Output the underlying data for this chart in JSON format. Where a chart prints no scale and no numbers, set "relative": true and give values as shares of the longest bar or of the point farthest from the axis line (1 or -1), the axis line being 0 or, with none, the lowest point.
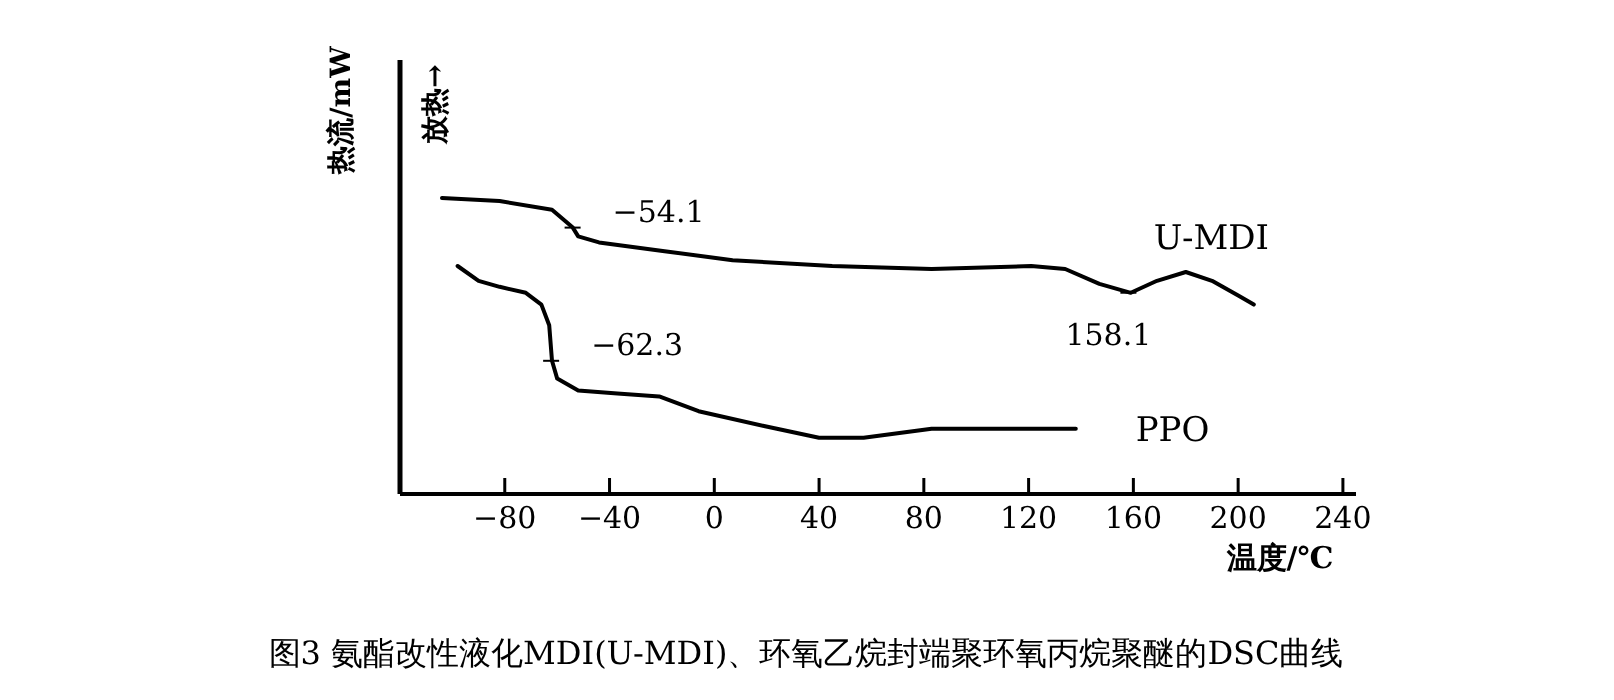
{
  "chart_data": {
    "type": "line",
    "relative": true,
    "title": "图3 氨酯改性液化MDI(U-MDI)、环氧乙烷封端聚环氧丙烷聚醚的DSC曲线",
    "xlabel": "温度/℃",
    "ylabel": "热流/mW",
    "xlim": [
      -120,
      245
    ],
    "xticks": [
      -80,
      -40,
      0,
      40,
      80,
      120,
      160,
      200,
      240
    ],
    "series": [
      {
        "name": "U-MDI",
        "color": "#000000",
        "x": [
          -104,
          -82,
          -62,
          -54,
          -52,
          -44,
          -19,
          7,
          45,
          83,
          121,
          134,
          147,
          159,
          169,
          180,
          190,
          200,
          206
        ],
        "values": [
          1.0,
          0.99,
          0.96,
          0.9,
          0.87,
          0.85,
          0.82,
          0.79,
          0.77,
          0.76,
          0.77,
          0.76,
          0.71,
          0.68,
          0.72,
          0.75,
          0.72,
          0.67,
          0.64
        ]
      },
      {
        "name": "PPO",
        "color": "#000000",
        "x": [
          -98,
          -90,
          -82,
          -72,
          -66,
          -63,
          -62,
          -60,
          -52,
          -37,
          -21,
          -6,
          19,
          40,
          57,
          83,
          108,
          138
        ],
        "values": [
          0.77,
          0.72,
          0.7,
          0.68,
          0.64,
          0.57,
          0.45,
          0.39,
          0.35,
          0.34,
          0.33,
          0.28,
          0.23,
          0.19,
          0.19,
          0.22,
          0.22,
          0.22
        ]
      }
    ],
    "annotations": [
      "放热→",
      {
        "text": "−54.1",
        "x": -54.1,
        "y": 0.9
      },
      {
        "text": "−62.3",
        "x": -62.3,
        "y": 0.45
      },
      {
        "text": "158.1",
        "x": 158.1,
        "y": 0.68
      }
    ]
  }
}
